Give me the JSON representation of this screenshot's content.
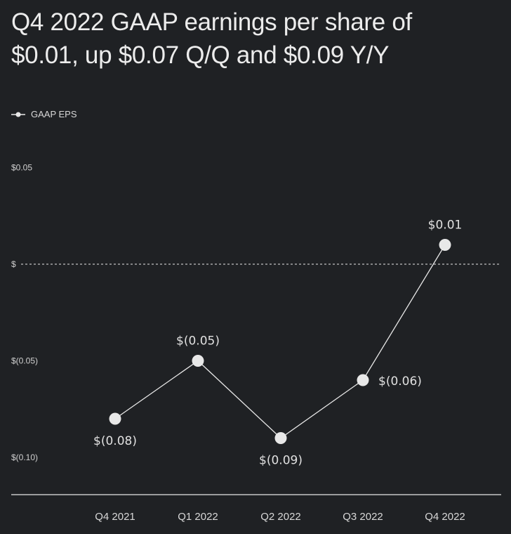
{
  "title_lines": [
    "Q4 2022 GAAP earnings per share of",
    "$0.01, up $0.07 Q/Q and $0.09 Y/Y"
  ],
  "legend_label": "GAAP EPS",
  "colors": {
    "background": "#1f2124",
    "series": "#e8e8e8",
    "axis": "#e8e8e8"
  },
  "chart_data": {
    "type": "line",
    "title": "Q4 2022 GAAP earnings per share of $0.01, up $0.07 Q/Q and $0.09 Y/Y",
    "categories": [
      "Q4 2021",
      "Q1 2022",
      "Q2 2022",
      "Q3  2022",
      "Q4 2022"
    ],
    "series": [
      {
        "name": "GAAP EPS",
        "values": [
          -0.08,
          -0.05,
          -0.09,
          -0.06,
          0.01
        ],
        "labels": [
          "$(0.08)",
          "$(0.05)",
          "$(0.09)",
          "$(0.06)",
          "$0.01"
        ],
        "label_positions": [
          "below",
          "above",
          "below",
          "right",
          "above"
        ]
      }
    ],
    "yticks": [
      0.05,
      0,
      -0.05,
      -0.1
    ],
    "ytick_labels": [
      "$0.05",
      "$",
      "$(0.05)",
      "$(0.10)"
    ],
    "ylim": [
      -0.12,
      0.06
    ],
    "zero_line": "dotted",
    "grid": false,
    "legend": "top-left"
  }
}
